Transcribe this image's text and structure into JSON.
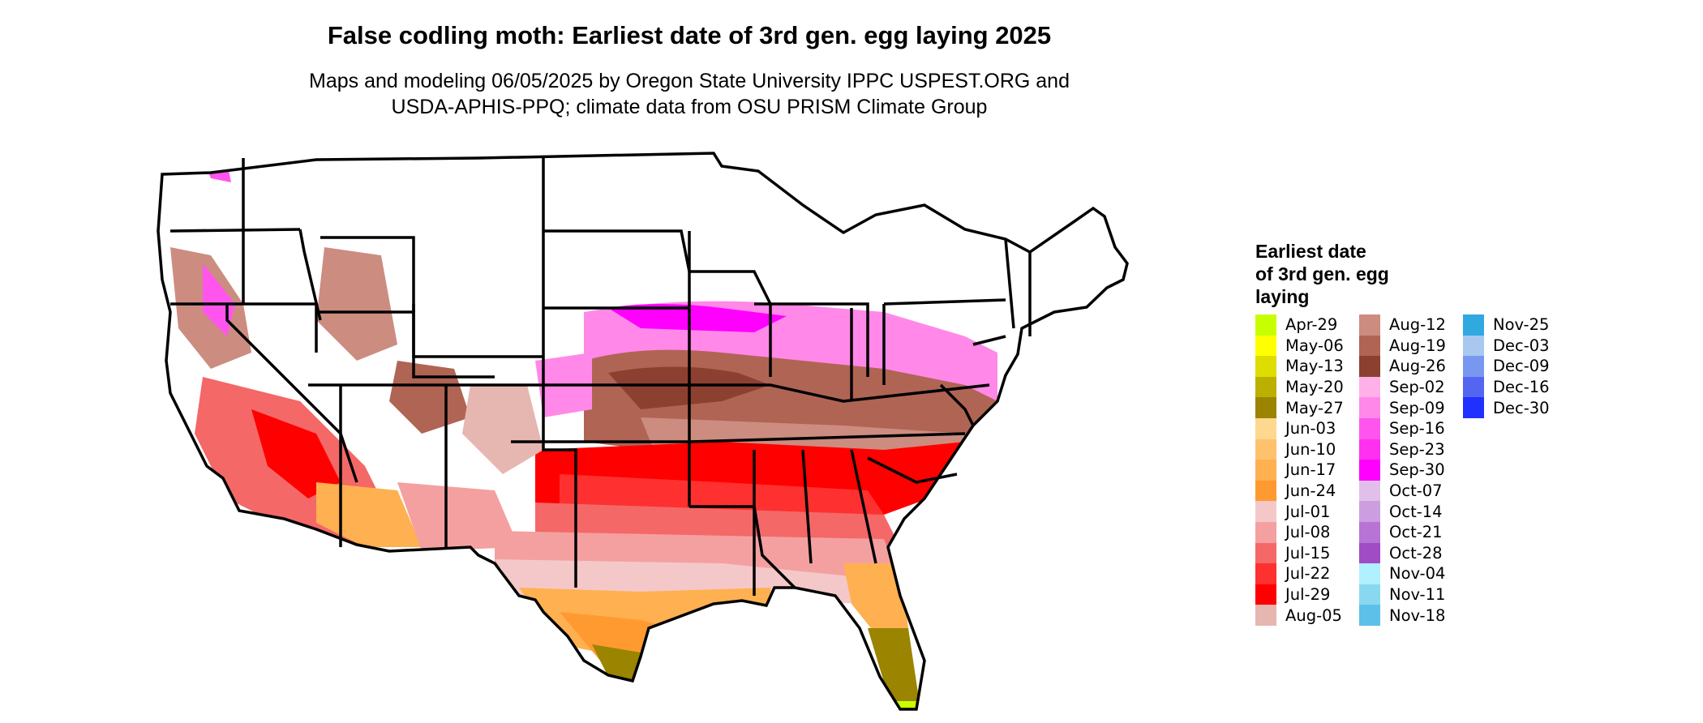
{
  "title": "False codling moth: Earliest date of 3rd gen. egg laying 2025",
  "subtitle_line1": "Maps and modeling 06/05/2025 by Oregon State University IPPC USPEST.ORG and",
  "subtitle_line2": "USDA-APHIS-PPQ; climate data from OSU PRISM Climate Group",
  "legend": {
    "title_line1": "Earliest date",
    "title_line2": "of 3rd gen. egg",
    "title_line3": "laying",
    "columns": [
      [
        {
          "label": "Apr-29",
          "color": "#c8ff00"
        },
        {
          "label": "May-06",
          "color": "#ffff00"
        },
        {
          "label": "May-13",
          "color": "#dddd00"
        },
        {
          "label": "May-20",
          "color": "#bbb000"
        },
        {
          "label": "May-27",
          "color": "#9a8400"
        },
        {
          "label": "Jun-03",
          "color": "#ffd890"
        },
        {
          "label": "Jun-10",
          "color": "#ffc26c"
        },
        {
          "label": "Jun-17",
          "color": "#ffb050"
        },
        {
          "label": "Jun-24",
          "color": "#ff9a30"
        },
        {
          "label": "Jul-01",
          "color": "#f4c8c8"
        },
        {
          "label": "Jul-08",
          "color": "#f4a0a0"
        },
        {
          "label": "Jul-15",
          "color": "#f46868"
        },
        {
          "label": "Jul-22",
          "color": "#ff3030"
        },
        {
          "label": "Jul-29",
          "color": "#ff0000"
        },
        {
          "label": "Aug-05",
          "color": "#e6b6b0"
        }
      ],
      [
        {
          "label": "Aug-12",
          "color": "#cc8c80"
        },
        {
          "label": "Aug-19",
          "color": "#b06454"
        },
        {
          "label": "Aug-26",
          "color": "#8c4030"
        },
        {
          "label": "Sep-02",
          "color": "#ffb0e8"
        },
        {
          "label": "Sep-09",
          "color": "#ff88e8"
        },
        {
          "label": "Sep-16",
          "color": "#ff55ee"
        },
        {
          "label": "Sep-23",
          "color": "#ff30f0"
        },
        {
          "label": "Sep-30",
          "color": "#ff00ff"
        },
        {
          "label": "Oct-07",
          "color": "#e0c0e8"
        },
        {
          "label": "Oct-14",
          "color": "#cc9ee0"
        },
        {
          "label": "Oct-21",
          "color": "#b874d4"
        },
        {
          "label": "Oct-28",
          "color": "#a04cc4"
        },
        {
          "label": "Nov-04",
          "color": "#b0f0ff"
        },
        {
          "label": "Nov-11",
          "color": "#88d8f0"
        },
        {
          "label": "Nov-18",
          "color": "#5cc0e8"
        }
      ],
      [
        {
          "label": "Nov-25",
          "color": "#30a8e0"
        },
        {
          "label": "Dec-03",
          "color": "#a8c8f0"
        },
        {
          "label": "Dec-09",
          "color": "#7898f0"
        },
        {
          "label": "Dec-16",
          "color": "#5466f0"
        },
        {
          "label": "Dec-30",
          "color": "#2030ff"
        }
      ]
    ]
  }
}
